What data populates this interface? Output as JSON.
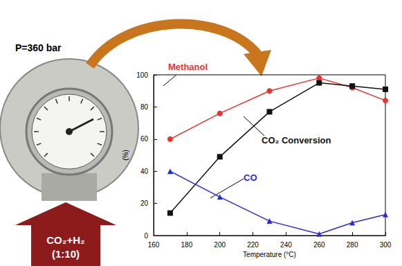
{
  "chart_data": {
    "type": "line",
    "x_label": "Temperature (°C)",
    "y_label": "(%)",
    "x": [
      170,
      200,
      230,
      260,
      280,
      300
    ],
    "series": [
      {
        "name": "Methanol",
        "color": "#e8342f",
        "marker": "circle",
        "values": [
          60,
          76,
          90,
          98,
          92,
          84
        ]
      },
      {
        "name": "CO₂ Conversion",
        "color": "#111111",
        "marker": "square",
        "values": [
          14,
          49,
          77,
          95,
          93,
          91
        ]
      },
      {
        "name": "CO",
        "color": "#2b2bd6",
        "marker": "triangle",
        "values": [
          40,
          24,
          9,
          1,
          8,
          13
        ]
      }
    ],
    "xlim": [
      160,
      300
    ],
    "xticks": [
      160,
      180,
      200,
      220,
      240,
      260,
      280,
      300
    ],
    "ylim": [
      0,
      100
    ],
    "yticks": [
      0,
      20,
      40,
      60,
      80,
      100
    ],
    "grid": false,
    "annotations": {
      "pressure": "P=360 bar",
      "feed": "CO₂+H₂",
      "ratio": "(1:10)"
    }
  }
}
